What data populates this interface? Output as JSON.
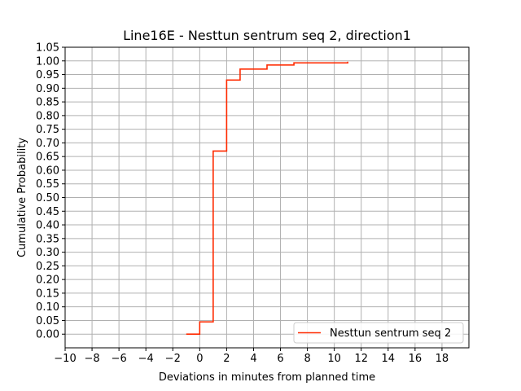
{
  "chart_data": {
    "type": "line",
    "title": "Line16E - Nesttun sentrum seq 2, direction1",
    "xlabel": "Deviations in minutes from planned time",
    "ylabel": "Cumulative Probability",
    "xlim": [
      -10,
      20
    ],
    "ylim": [
      -0.05,
      1.05
    ],
    "xticks": [
      "−10",
      "−8",
      "−6",
      "−4",
      "−2",
      "0",
      "2",
      "4",
      "6",
      "8",
      "10",
      "12",
      "14",
      "16",
      "18"
    ],
    "yticks": [
      "0.00",
      "0.05",
      "0.10",
      "0.15",
      "0.20",
      "0.25",
      "0.30",
      "0.35",
      "0.40",
      "0.45",
      "0.50",
      "0.55",
      "0.60",
      "0.65",
      "0.70",
      "0.75",
      "0.80",
      "0.85",
      "0.90",
      "0.95",
      "1.00",
      "1.05"
    ],
    "grid": true,
    "legend_position": "lower-right",
    "step_style": "post",
    "series": [
      {
        "name": "Nesttun sentrum seq 2",
        "color": "#ff2a00",
        "x": [
          -1,
          0,
          1,
          2,
          3,
          5,
          7,
          11
        ],
        "y": [
          0.0,
          0.045,
          0.67,
          0.93,
          0.97,
          0.985,
          0.993,
          0.997
        ]
      }
    ]
  }
}
